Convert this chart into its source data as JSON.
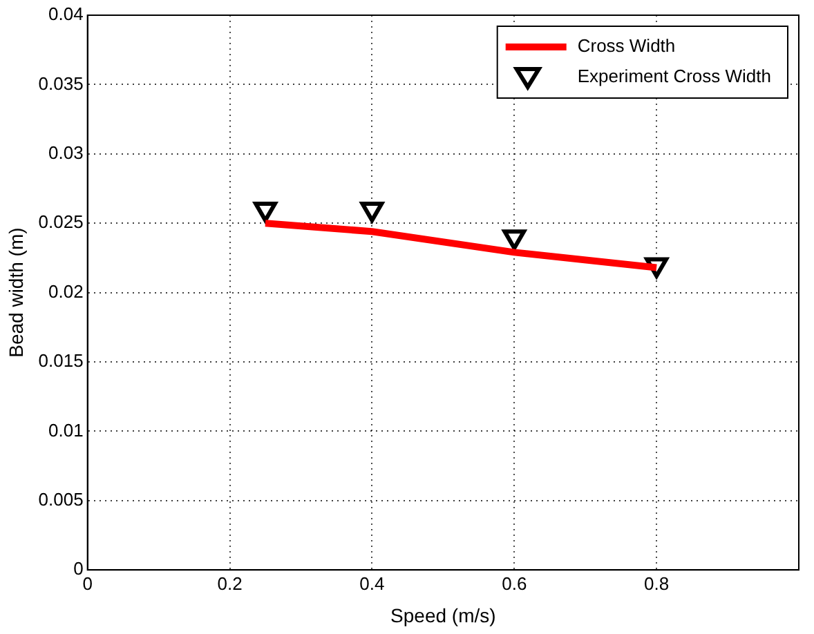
{
  "chart_data": {
    "type": "line",
    "xlabel": "Speed (m/s)",
    "ylabel": "Bead width (m)",
    "xlim": [
      0,
      1
    ],
    "xticks": [
      0,
      0.2,
      0.4,
      0.6,
      0.8
    ],
    "ylim": [
      0,
      0.04
    ],
    "yticks": [
      0,
      0.005,
      0.01,
      0.015,
      0.02,
      0.025,
      0.03,
      0.035,
      0.04
    ],
    "grid": true,
    "legend": "top right",
    "series": [
      {
        "name": "Cross Width",
        "color": "#ff0000",
        "marker": "none",
        "line_style": "solid",
        "x": [
          0.25,
          0.4,
          0.6,
          0.8
        ],
        "values": [
          0.025,
          0.0244,
          0.0229,
          0.0218
        ]
      },
      {
        "name": "Experiment Cross Width",
        "type": "scatter",
        "color": "#000000",
        "marker": "triangle",
        "x": [
          0.25,
          0.4,
          0.6,
          0.8
        ],
        "values": [
          0.026,
          0.026,
          0.024,
          0.022
        ]
      }
    ]
  }
}
